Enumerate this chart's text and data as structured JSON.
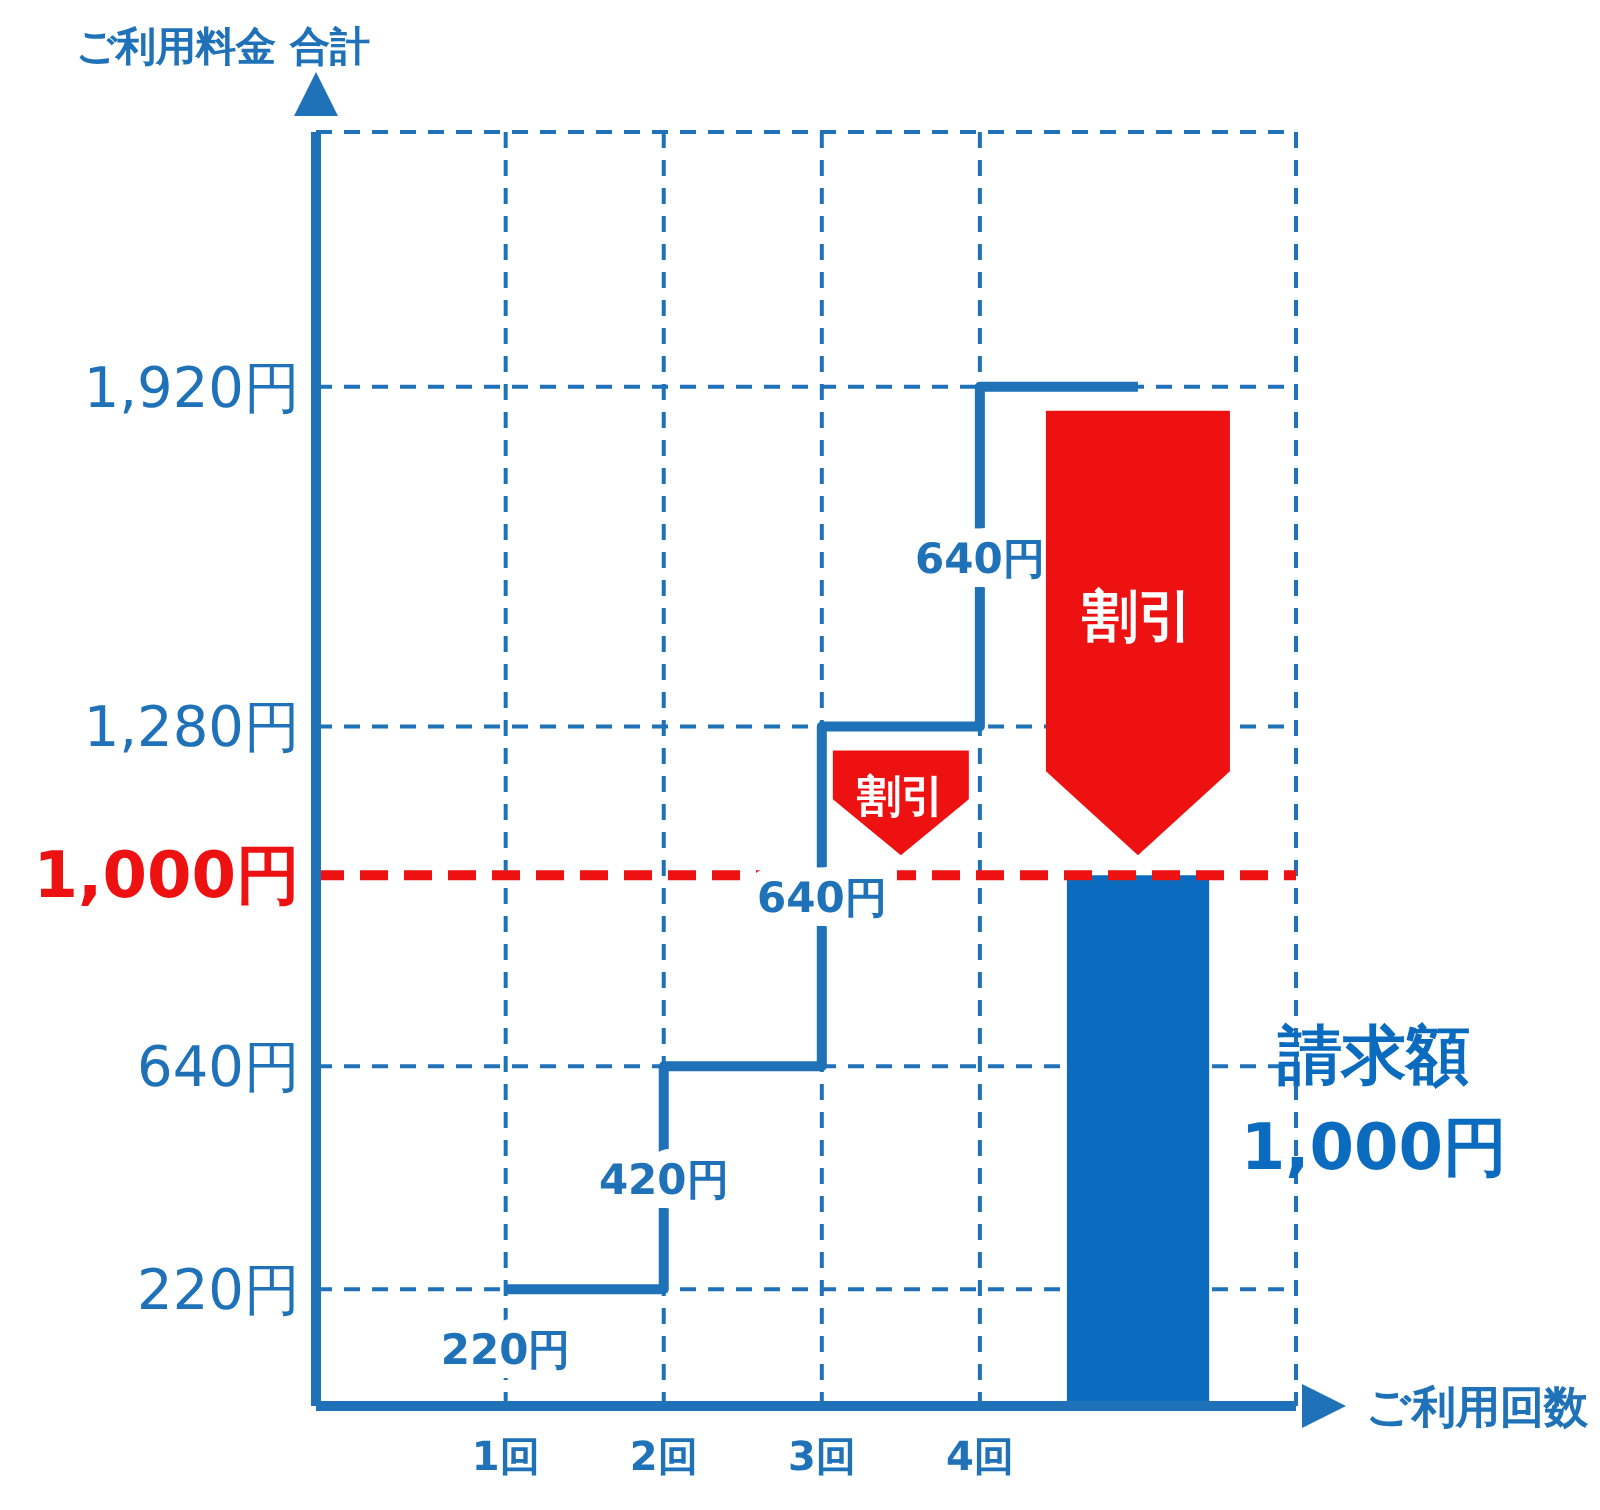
{
  "chart_data": {
    "type": "step",
    "ylabel": "ご利用料金 合計",
    "xlabel": "ご利用回数",
    "categories": [
      "1回",
      "2回",
      "3回",
      "4回",
      null
    ],
    "series": [
      {
        "color": "#1f72b8",
        "values": [
          220,
          640,
          1280,
          1920,
          1920
        ]
      },
      {
        "type": "bar",
        "name": "請求額",
        "color": "#0b6cbf",
        "values": [
          null,
          null,
          null,
          null,
          1000
        ]
      }
    ],
    "ylim": [
      0,
      2400
    ],
    "yticks": [
      {
        "value": 220,
        "label": "220円"
      },
      {
        "value": 640,
        "label": "640円"
      },
      {
        "value": 1280,
        "label": "1,280円"
      },
      {
        "value": 1920,
        "label": "1,920円"
      }
    ],
    "grid": true,
    "ref_lines": [
      {
        "axis": "y",
        "value": 1000,
        "label": "1,000円",
        "color": "#ee1111",
        "line_style": "dashed"
      }
    ],
    "annotations": [
      "220円",
      {
        "text": "420円",
        "x": "2回",
        "y": 430
      },
      {
        "text": "640円",
        "x": "3回",
        "y": 960
      },
      {
        "text": "640円",
        "x": "4回",
        "y": 1600
      },
      "割引",
      "割引",
      "1,000円"
    ]
  }
}
